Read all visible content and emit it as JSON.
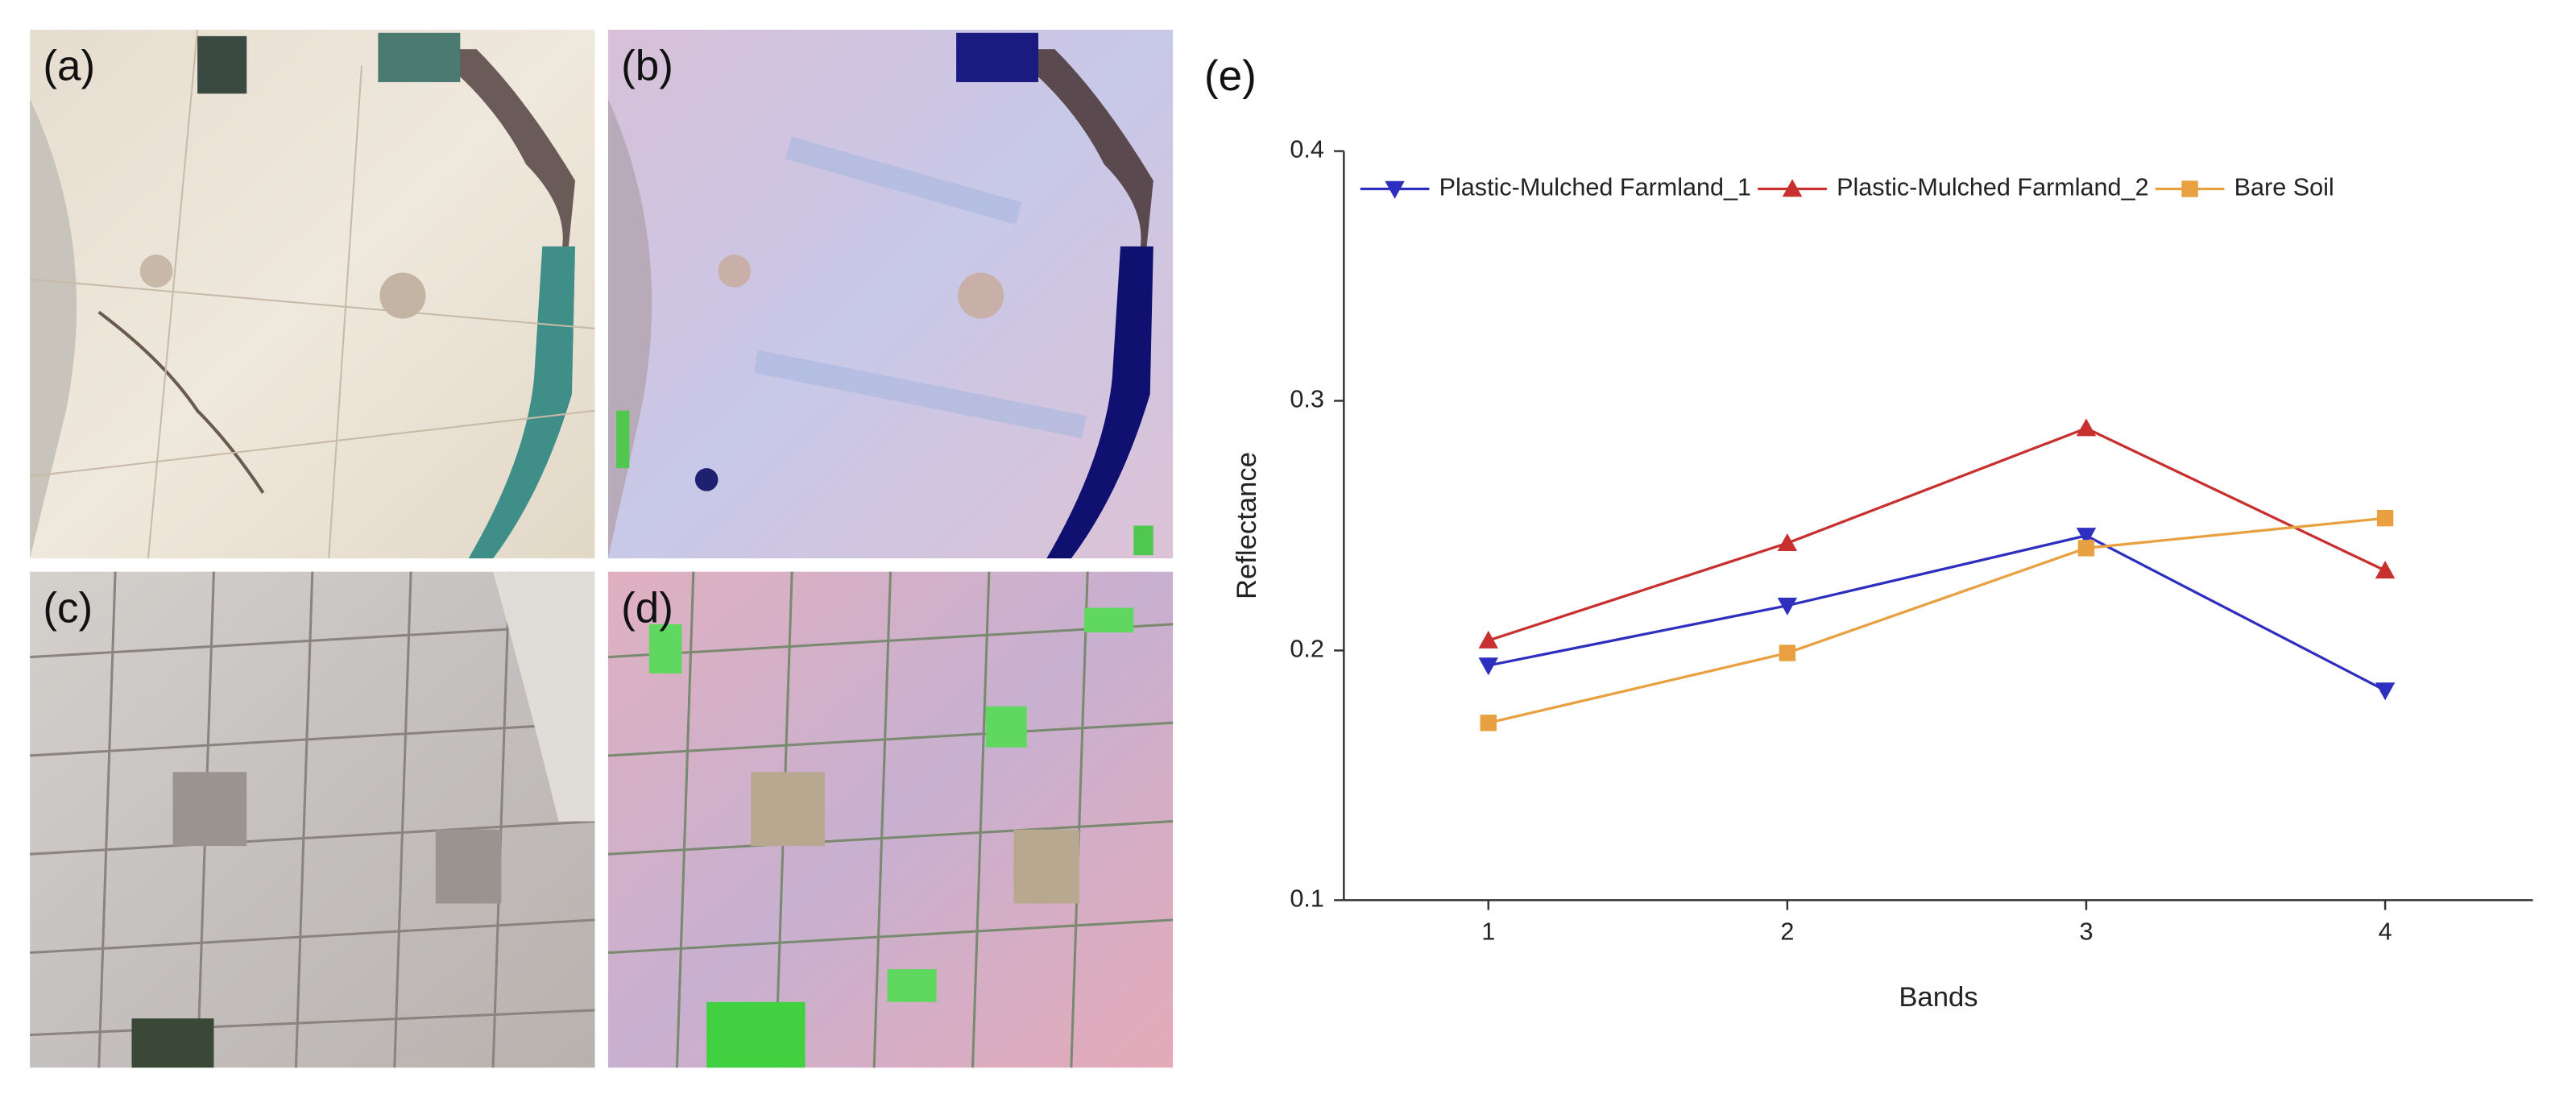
{
  "panels": [
    "(a)",
    "(b)",
    "(c)",
    "(d)"
  ],
  "chart_data": {
    "type": "line",
    "panel_label": "(e)",
    "x_label": "Bands",
    "y_label": "Reflectance",
    "categories": [
      "1",
      "2",
      "3",
      "4"
    ],
    "ylim": [
      0.1,
      0.4
    ],
    "yticks": [
      0.1,
      0.2,
      0.3,
      0.4
    ],
    "series": [
      {
        "name": "Plastic-Mulched Farmland_1",
        "color": "#2f2fbf",
        "marker": "triangle-down",
        "values": [
          0.194,
          0.218,
          0.246,
          0.184
        ]
      },
      {
        "name": "Plastic-Mulched Farmland_2",
        "color": "#c83030",
        "marker": "triangle-up",
        "values": [
          0.204,
          0.243,
          0.289,
          0.232
        ]
      },
      {
        "name": "Bare Soil",
        "color": "#e8a040",
        "marker": "square",
        "values": [
          0.171,
          0.199,
          0.241,
          0.253
        ]
      }
    ]
  }
}
